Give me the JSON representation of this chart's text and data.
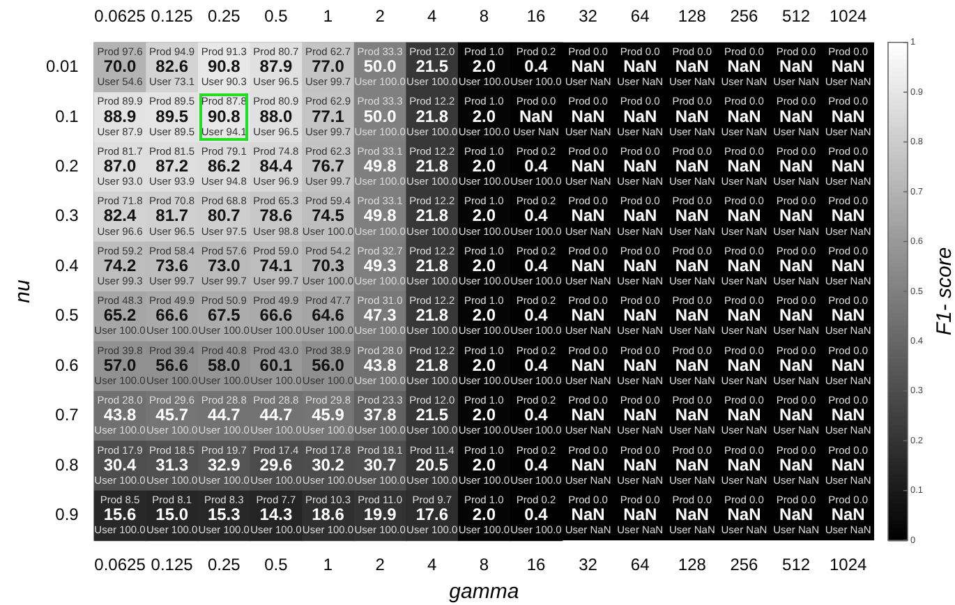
{
  "chart_data": {
    "type": "heatmap",
    "xlabel": "gamma",
    "ylabel": "nu",
    "clabel": "F1- score",
    "categories": [
      "0.0625",
      "0.125",
      "0.25",
      "0.5",
      "1",
      "2",
      "4",
      "8",
      "16",
      "32",
      "64",
      "128",
      "256",
      "512",
      "1024"
    ],
    "y_categories": [
      "0.01",
      "0.1",
      "0.2",
      "0.3",
      "0.4",
      "0.5",
      "0.6",
      "0.7",
      "0.8",
      "0.9"
    ],
    "clim": [
      0,
      1
    ],
    "cticks": [
      0,
      0.1,
      0.2,
      0.3,
      0.4,
      0.5,
      0.6,
      0.7,
      0.8,
      0.9,
      1
    ],
    "cells": [
      [
        0.7,
        0.826,
        0.908,
        0.879,
        0.77,
        0.5,
        0.215,
        0.02,
        0.004,
        null,
        null,
        null,
        null,
        null,
        null
      ],
      [
        0.889,
        0.895,
        0.908,
        0.88,
        0.771,
        0.5,
        0.218,
        0.02,
        null,
        null,
        null,
        null,
        null,
        null,
        null
      ],
      [
        0.87,
        0.872,
        0.862,
        0.844,
        0.767,
        0.498,
        0.218,
        0.02,
        0.004,
        null,
        null,
        null,
        null,
        null,
        null
      ],
      [
        0.824,
        0.817,
        0.807,
        0.786,
        0.745,
        0.498,
        0.218,
        0.02,
        0.004,
        null,
        null,
        null,
        null,
        null,
        null
      ],
      [
        0.742,
        0.736,
        0.73,
        0.741,
        0.703,
        0.493,
        0.218,
        0.02,
        0.004,
        null,
        null,
        null,
        null,
        null,
        null
      ],
      [
        0.652,
        0.666,
        0.675,
        0.666,
        0.646,
        0.473,
        0.218,
        0.02,
        0.004,
        null,
        null,
        null,
        null,
        null,
        null
      ],
      [
        0.57,
        0.566,
        0.58,
        0.601,
        0.56,
        0.438,
        0.218,
        0.02,
        0.004,
        null,
        null,
        null,
        null,
        null,
        null
      ],
      [
        0.438,
        0.457,
        0.447,
        0.447,
        0.459,
        0.378,
        0.215,
        0.02,
        0.004,
        null,
        null,
        null,
        null,
        null,
        null
      ],
      [
        0.304,
        0.313,
        0.329,
        0.296,
        0.302,
        0.307,
        0.205,
        0.02,
        0.004,
        null,
        null,
        null,
        null,
        null,
        null
      ],
      [
        0.156,
        0.15,
        0.153,
        0.143,
        0.186,
        0.199,
        0.176,
        0.02,
        0.004,
        null,
        null,
        null,
        null,
        null,
        null
      ]
    ],
    "cell_labels": [
      [
        "Prod 97.6\n70.0\nUser 54.6",
        "Prod 94.9\n82.6\nUser 73.1",
        "Prod 91.3\n90.8\nUser 90.3",
        "Prod 80.7\n87.9\nUser 96.5",
        "Prod 62.7\n77.0\nUser 99.7",
        "Prod 33.3\n50.0\nUser 100.0",
        "Prod 12.0\n21.5\nUser 100.0",
        "Prod 1.0\n2.0\nUser 100.0",
        "Prod 0.2\n0.4\nUser 100.0",
        "Prod 0.0\nNaN\nUser NaN",
        "Prod 0.0\nNaN\nUser NaN",
        "Prod 0.0\nNaN\nUser NaN",
        "Prod 0.0\nNaN\nUser NaN",
        "Prod 0.0\nNaN\nUser NaN",
        "Prod 0.0\nNaN\nUser NaN"
      ],
      [
        "Prod 89.9\n88.9\nUser 87.9",
        "Prod 89.5\n89.5\nUser 89.5",
        "Prod 87.8\n90.8\nUser 94.1",
        "Prod 80.9\n88.0\nUser 96.5",
        "Prod 62.9\n77.1\nUser 99.7",
        "Prod 33.3\n50.0\nUser 100.0",
        "Prod 12.2\n21.8\nUser 100.0",
        "Prod 1.0\n2.0\nUser 100.0",
        "Prod 0.0\nNaN\nUser NaN",
        "Prod 0.0\nNaN\nUser NaN",
        "Prod 0.0\nNaN\nUser NaN",
        "Prod 0.0\nNaN\nUser NaN",
        "Prod 0.0\nNaN\nUser NaN",
        "Prod 0.0\nNaN\nUser NaN",
        "Prod 0.0\nNaN\nUser NaN"
      ],
      [
        "Prod 81.7\n87.0\nUser 93.0",
        "Prod 81.5\n87.2\nUser 93.9",
        "Prod 79.1\n86.2\nUser 94.8",
        "Prod 74.8\n84.4\nUser 96.9",
        "Prod 62.3\n76.7\nUser 99.7",
        "Prod 33.1\n49.8\nUser 100.0",
        "Prod 12.2\n21.8\nUser 100.0",
        "Prod 1.0\n2.0\nUser 100.0",
        "Prod 0.2\n0.4\nUser 100.0",
        "Prod 0.0\nNaN\nUser NaN",
        "Prod 0.0\nNaN\nUser NaN",
        "Prod 0.0\nNaN\nUser NaN",
        "Prod 0.0\nNaN\nUser NaN",
        "Prod 0.0\nNaN\nUser NaN",
        "Prod 0.0\nNaN\nUser NaN"
      ],
      [
        "Prod 71.8\n82.4\nUser 96.6",
        "Prod 70.8\n81.7\nUser 96.5",
        "Prod 68.8\n80.7\nUser 97.5",
        "Prod 65.3\n78.6\nUser 98.8",
        "Prod 59.4\n74.5\nUser 100.0",
        "Prod 33.1\n49.8\nUser 100.0",
        "Prod 12.2\n21.8\nUser 100.0",
        "Prod 1.0\n2.0\nUser 100.0",
        "Prod 0.2\n0.4\nUser 100.0",
        "Prod 0.0\nNaN\nUser NaN",
        "Prod 0.0\nNaN\nUser NaN",
        "Prod 0.0\nNaN\nUser NaN",
        "Prod 0.0\nNaN\nUser NaN",
        "Prod 0.0\nNaN\nUser NaN",
        "Prod 0.0\nNaN\nUser NaN"
      ],
      [
        "Prod 59.2\n74.2\nUser 99.3",
        "Prod 58.4\n73.6\nUser 99.7",
        "Prod 57.6\n73.0\nUser 99.7",
        "Prod 59.0\n74.1\nUser 99.7",
        "Prod 54.2\n70.3\nUser 100.0",
        "Prod 32.7\n49.3\nUser 100.0",
        "Prod 12.2\n21.8\nUser 100.0",
        "Prod 1.0\n2.0\nUser 100.0",
        "Prod 0.2\n0.4\nUser 100.0",
        "Prod 0.0\nNaN\nUser NaN",
        "Prod 0.0\nNaN\nUser NaN",
        "Prod 0.0\nNaN\nUser NaN",
        "Prod 0.0\nNaN\nUser NaN",
        "Prod 0.0\nNaN\nUser NaN",
        "Prod 0.0\nNaN\nUser NaN"
      ],
      [
        "Prod 48.3\n65.2\nUser 100.0",
        "Prod 49.9\n66.6\nUser 100.0",
        "Prod 50.9\n67.5\nUser 100.0",
        "Prod 49.9\n66.6\nUser 100.0",
        "Prod 47.7\n64.6\nUser 100.0",
        "Prod 31.0\n47.3\nUser 100.0",
        "Prod 12.2\n21.8\nUser 100.0",
        "Prod 1.0\n2.0\nUser 100.0",
        "Prod 0.2\n0.4\nUser 100.0",
        "Prod 0.0\nNaN\nUser NaN",
        "Prod 0.0\nNaN\nUser NaN",
        "Prod 0.0\nNaN\nUser NaN",
        "Prod 0.0\nNaN\nUser NaN",
        "Prod 0.0\nNaN\nUser NaN",
        "Prod 0.0\nNaN\nUser NaN"
      ],
      [
        "Prod 39.8\n57.0\nUser 100.0",
        "Prod 39.4\n56.6\nUser 100.0",
        "Prod 40.8\n58.0\nUser 100.0",
        "Prod 43.0\n60.1\nUser 100.0",
        "Prod 38.9\n56.0\nUser 100.0",
        "Prod 28.0\n43.8\nUser 100.0",
        "Prod 12.2\n21.8\nUser 100.0",
        "Prod 1.0\n2.0\nUser 100.0",
        "Prod 0.2\n0.4\nUser 100.0",
        "Prod 0.0\nNaN\nUser NaN",
        "Prod 0.0\nNaN\nUser NaN",
        "Prod 0.0\nNaN\nUser NaN",
        "Prod 0.0\nNaN\nUser NaN",
        "Prod 0.0\nNaN\nUser NaN",
        "Prod 0.0\nNaN\nUser NaN"
      ],
      [
        "Prod 28.0\n43.8\nUser 100.0",
        "Prod 29.6\n45.7\nUser 100.0",
        "Prod 28.8\n44.7\nUser 100.0",
        "Prod 28.8\n44.7\nUser 100.0",
        "Prod 29.8\n45.9\nUser 100.0",
        "Prod 23.3\n37.8\nUser 100.0",
        "Prod 12.0\n21.5\nUser 100.0",
        "Prod 1.0\n2.0\nUser 100.0",
        "Prod 0.2\n0.4\nUser 100.0",
        "Prod 0.0\nNaN\nUser NaN",
        "Prod 0.0\nNaN\nUser NaN",
        "Prod 0.0\nNaN\nUser NaN",
        "Prod 0.0\nNaN\nUser NaN",
        "Prod 0.0\nNaN\nUser NaN",
        "Prod 0.0\nNaN\nUser NaN"
      ],
      [
        "Prod 17.9\n30.4\nUser 100.0",
        "Prod 18.5\n31.3\nUser 100.0",
        "Prod 19.7\n32.9\nUser 100.0",
        "Prod 17.4\n29.6\nUser 100.0",
        "Prod 17.8\n30.2\nUser 100.0",
        "Prod 18.1\n30.7\nUser 100.0",
        "Prod 11.4\n20.5\nUser 100.0",
        "Prod 1.0\n2.0\nUser 100.0",
        "Prod 0.2\n0.4\nUser 100.0",
        "Prod 0.0\nNaN\nUser NaN",
        "Prod 0.0\nNaN\nUser NaN",
        "Prod 0.0\nNaN\nUser NaN",
        "Prod 0.0\nNaN\nUser NaN",
        "Prod 0.0\nNaN\nUser NaN",
        "Prod 0.0\nNaN\nUser NaN"
      ],
      [
        "Prod 8.5\n15.6\nUser 100.0",
        "Prod 8.1\n15.0\nUser 100.0",
        "Prod 8.3\n15.3\nUser 100.0",
        "Prod 7.7\n14.3\nUser 100.0",
        "Prod 10.3\n18.6\nUser 100.0",
        "Prod 11.0\n19.9\nUser 100.0",
        "Prod 9.7\n17.6\nUser 100.0",
        "Prod 1.0\n2.0\nUser 100.0",
        "Prod 0.2\n0.4\nUser 100.0",
        "Prod 0.0\nNaN\nUser NaN",
        "Prod 0.0\nNaN\nUser NaN",
        "Prod 0.0\nNaN\nUser NaN",
        "Prod 0.0\nNaN\nUser NaN",
        "Prod 0.0\nNaN\nUser NaN",
        "Prod 0.0\nNaN\nUser NaN"
      ]
    ]
  }
}
